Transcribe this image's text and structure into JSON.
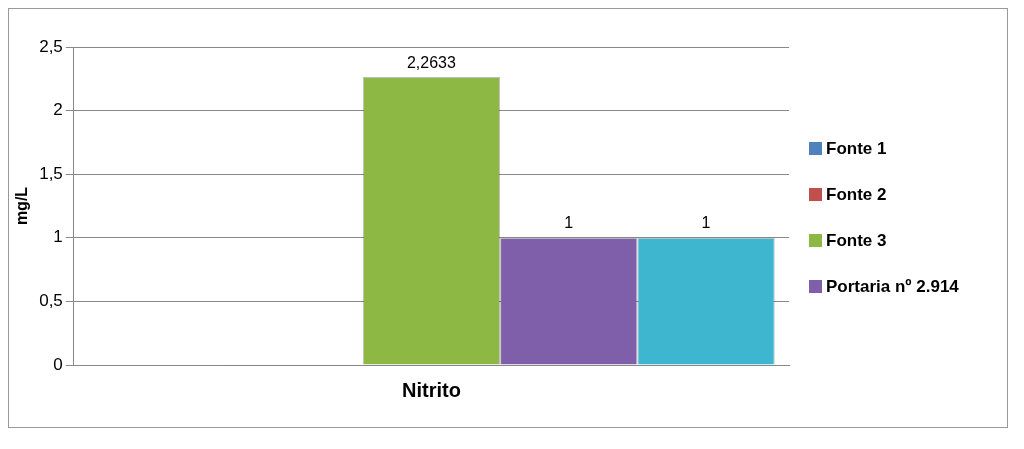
{
  "chart_data": {
    "type": "bar",
    "ylabel": "mg/L",
    "categories": [
      "Nitrito"
    ],
    "series": [
      {
        "name": "Fonte 1",
        "color": "#4f81bd",
        "values": [
          0
        ]
      },
      {
        "name": "Fonte 2",
        "color": "#c0504d",
        "values": [
          0.005
        ]
      },
      {
        "name": "Fonte 3",
        "color": "#8db843",
        "values": [
          2.2633
        ],
        "value_labels": [
          "2,2633"
        ]
      },
      {
        "name": "Portaria  nº 2.914",
        "color": "#7f5fa9",
        "values": [
          1
        ],
        "value_labels": [
          "1"
        ]
      },
      {
        "color": "#3fb6cf",
        "values": [
          1
        ],
        "value_labels": [
          "1"
        ]
      }
    ],
    "ylim": [
      0,
      2.5
    ],
    "yticks": [
      0,
      {
        "value": 0.5,
        "label": "0,5"
      },
      1,
      {
        "value": 1.5,
        "label": "1,5"
      },
      2,
      {
        "value": 2.5,
        "label": "2,5"
      }
    ],
    "grid": "y",
    "legend": "right"
  }
}
